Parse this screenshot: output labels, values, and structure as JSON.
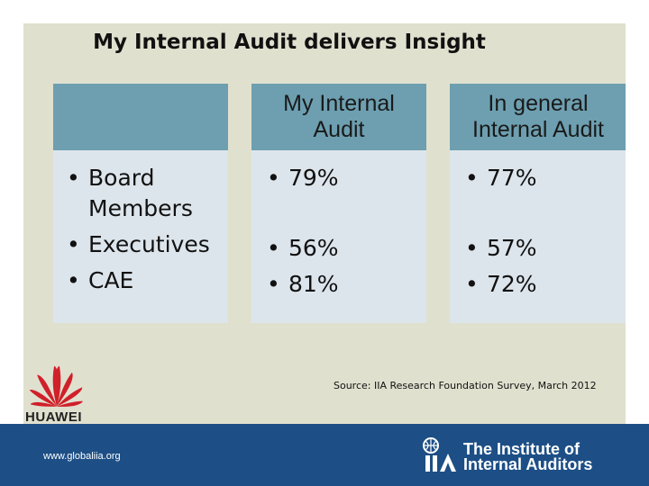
{
  "slide": {
    "title": "My Internal Audit delivers Insight",
    "table": {
      "header_col2": "My Internal Audit",
      "header_col3": "In general Internal Audit",
      "rows_label": [
        "Board Members",
        "Executives",
        "CAE"
      ],
      "col2_values": [
        "79%",
        "56%",
        "81%"
      ],
      "col3_values": [
        "77%",
        "57%",
        "72%"
      ]
    },
    "source": "Source: IIA Research Foundation Survey, March 2012",
    "logo_text": "HUAWEI"
  },
  "footer": {
    "url": "www.globaliia.org",
    "org_line1": "The Institute of",
    "org_line2": "Internal Auditors"
  },
  "colors": {
    "panel_bg": "#e0e0cf",
    "header_bg": "#6d9fb0",
    "cell_bg": "#dde5ec",
    "footer_bg": "#1d4f86",
    "huawei_red": "#d0202a"
  }
}
